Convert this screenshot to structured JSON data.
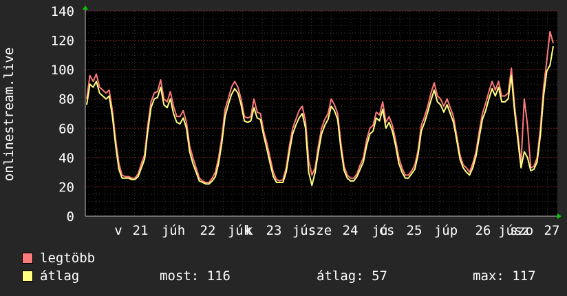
{
  "chart_data": {
    "type": "line",
    "ylabel": "onlinestream.live",
    "ylim": [
      0,
      140
    ],
    "yticks": [
      0,
      20,
      40,
      60,
      80,
      100,
      120,
      140
    ],
    "x_tick_labels": [
      "v",
      "21",
      "júh",
      "22",
      "júk",
      "k",
      "23",
      "jús",
      "sze",
      "24",
      "jú",
      "cs",
      "25",
      "júp",
      "26",
      "júsz",
      "szo",
      "27"
    ],
    "grid": true,
    "colors": {
      "background": "#262626",
      "plot": "#000000",
      "grid_minor": "#3a3a3a",
      "grid_major": "#7a2a2a",
      "axis_arrow": "#00cc00"
    },
    "series": [
      {
        "name": "legtöbb",
        "color": "#ff7b7b",
        "values": [
          80,
          96,
          92,
          97,
          88,
          86,
          84,
          86,
          72,
          52,
          36,
          28,
          27,
          27,
          26,
          26,
          29,
          36,
          42,
          62,
          78,
          84,
          85,
          93,
          80,
          78,
          85,
          75,
          68,
          68,
          72,
          64,
          48,
          40,
          33,
          26,
          24,
          23,
          23,
          26,
          30,
          40,
          54,
          73,
          80,
          88,
          92,
          88,
          80,
          68,
          67,
          68,
          80,
          71,
          70,
          58,
          50,
          40,
          30,
          25,
          24,
          25,
          33,
          48,
          60,
          66,
          72,
          75,
          65,
          38,
          28,
          33,
          48,
          60,
          66,
          70,
          80,
          76,
          70,
          50,
          34,
          28,
          26,
          26,
          29,
          35,
          40,
          52,
          60,
          62,
          71,
          69,
          78,
          64,
          68,
          62,
          52,
          40,
          33,
          28,
          28,
          31,
          35,
          45,
          62,
          68,
          75,
          84,
          91,
          82,
          80,
          75,
          80,
          74,
          68,
          55,
          42,
          35,
          33,
          30,
          36,
          44,
          58,
          70,
          77,
          85,
          92,
          86,
          92,
          82,
          82,
          84,
          101,
          75,
          56,
          36,
          80,
          62,
          33,
          34,
          40,
          60,
          88,
          106,
          126,
          118
        ]
      },
      {
        "name": "átlag",
        "color": "#ffff80",
        "values": [
          76,
          90,
          88,
          92,
          84,
          82,
          80,
          82,
          68,
          48,
          32,
          26,
          26,
          26,
          25,
          25,
          27,
          33,
          39,
          58,
          74,
          80,
          81,
          88,
          76,
          74,
          80,
          70,
          64,
          63,
          67,
          60,
          44,
          36,
          30,
          24,
          23,
          22,
          22,
          24,
          27,
          36,
          50,
          68,
          76,
          83,
          87,
          84,
          76,
          65,
          64,
          65,
          74,
          67,
          66,
          55,
          46,
          36,
          27,
          23,
          23,
          23,
          30,
          44,
          56,
          62,
          67,
          70,
          60,
          30,
          21,
          30,
          44,
          56,
          62,
          66,
          75,
          72,
          66,
          46,
          31,
          26,
          24,
          24,
          27,
          32,
          37,
          48,
          56,
          58,
          67,
          65,
          73,
          60,
          64,
          58,
          48,
          36,
          30,
          26,
          26,
          29,
          32,
          42,
          58,
          64,
          71,
          79,
          86,
          78,
          76,
          71,
          76,
          70,
          64,
          52,
          39,
          33,
          30,
          28,
          33,
          41,
          54,
          66,
          72,
          80,
          87,
          82,
          88,
          78,
          78,
          80,
          96,
          71,
          52,
          33,
          44,
          40,
          31,
          32,
          37,
          55,
          82,
          99,
          103,
          116
        ]
      }
    ]
  },
  "legend": {
    "items": [
      {
        "label": "legtöbb",
        "color": "#ff7b7b"
      },
      {
        "label": "átlag",
        "color": "#ffff80"
      }
    ],
    "stats": [
      {
        "label": "most:",
        "value": "116"
      },
      {
        "label": "átlag:",
        "value": "57"
      },
      {
        "label": "max:",
        "value": "117"
      }
    ]
  }
}
